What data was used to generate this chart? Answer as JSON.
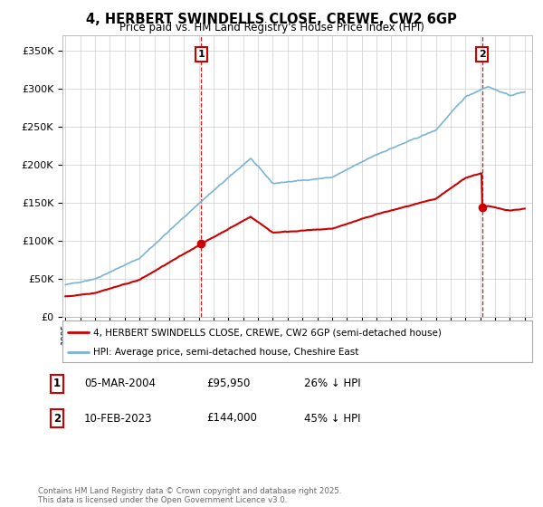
{
  "title": "4, HERBERT SWINDELLS CLOSE, CREWE, CW2 6GP",
  "subtitle": "Price paid vs. HM Land Registry's House Price Index (HPI)",
  "legend_line1": "4, HERBERT SWINDELLS CLOSE, CREWE, CW2 6GP (semi-detached house)",
  "legend_line2": "HPI: Average price, semi-detached house, Cheshire East",
  "footnote": "Contains HM Land Registry data © Crown copyright and database right 2025.\nThis data is licensed under the Open Government Licence v3.0.",
  "purchase1_label": "1",
  "purchase1_date": "05-MAR-2004",
  "purchase1_price": "£95,950",
  "purchase1_hpi": "26% ↓ HPI",
  "purchase1_year": 2004.17,
  "purchase1_value": 95950,
  "purchase2_label": "2",
  "purchase2_date": "10-FEB-2023",
  "purchase2_price": "£144,000",
  "purchase2_hpi": "45% ↓ HPI",
  "purchase2_year": 2023.12,
  "purchase2_value": 144000,
  "hpi_color": "#7ab3d4",
  "price_color": "#cc0000",
  "ylim": [
    0,
    370000
  ],
  "yticks": [
    0,
    50000,
    100000,
    150000,
    200000,
    250000,
    300000,
    350000
  ],
  "background_color": "#ffffff",
  "grid_color": "#cccccc"
}
